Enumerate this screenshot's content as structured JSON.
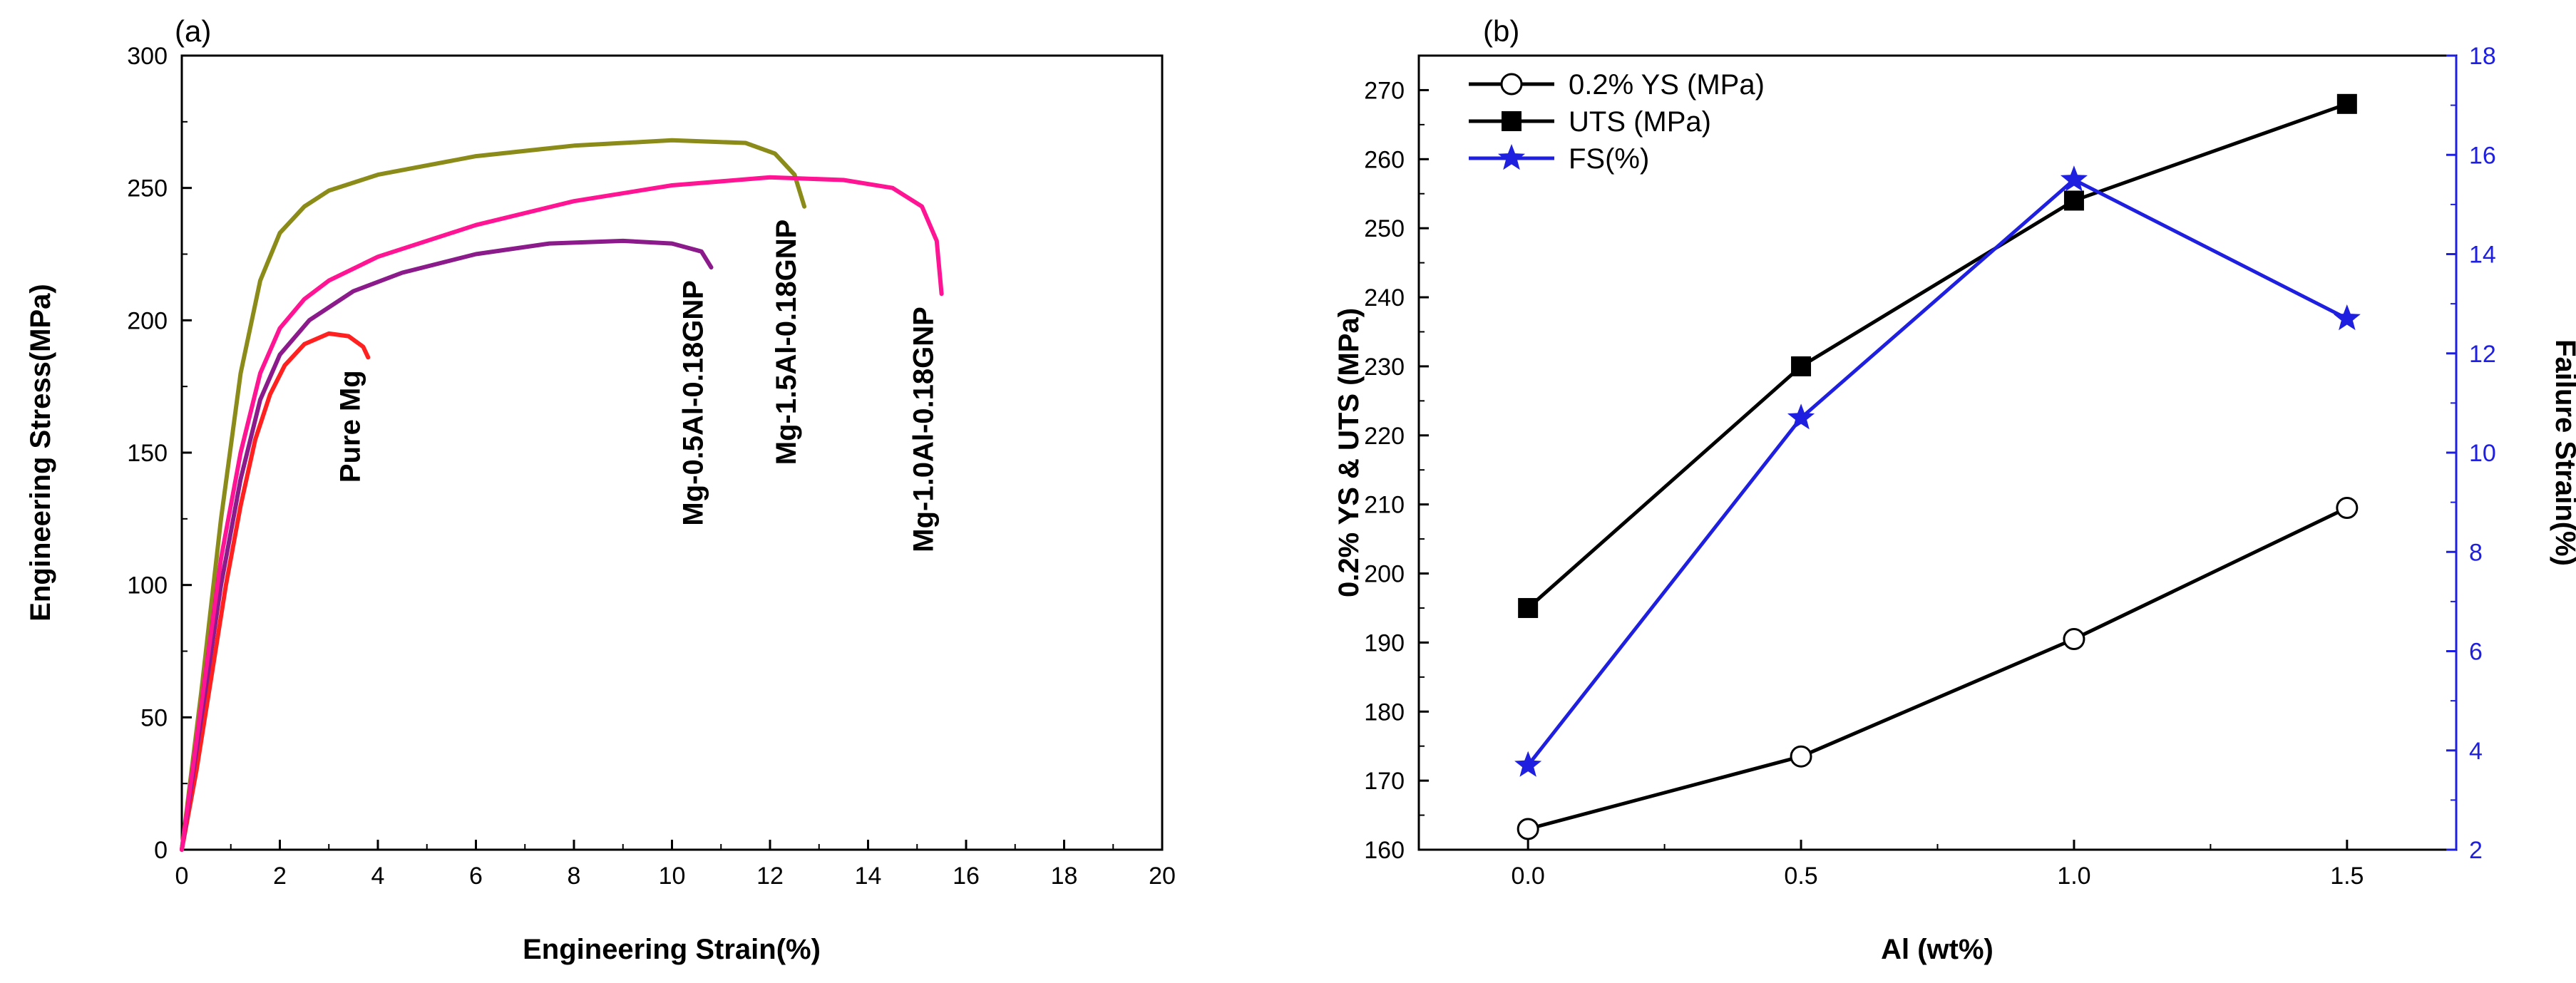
{
  "chart_data": [
    {
      "panel_label": "(a)",
      "type": "line",
      "xlabel": "Engineering Strain(%)",
      "ylabel": "Engineering Stress(MPa)",
      "xlim": [
        0,
        20
      ],
      "ylim": [
        0,
        300
      ],
      "xticks": [
        0,
        2,
        4,
        6,
        8,
        10,
        12,
        14,
        16,
        18,
        20
      ],
      "yticks": [
        0,
        50,
        100,
        150,
        200,
        250,
        300
      ],
      "series": [
        {
          "name": "Pure Mg",
          "label": "Pure Mg",
          "color": "#ff2020",
          "points": [
            [
              0,
              0
            ],
            [
              0.3,
              30
            ],
            [
              0.6,
              65
            ],
            [
              0.9,
              100
            ],
            [
              1.2,
              130
            ],
            [
              1.5,
              155
            ],
            [
              1.8,
              172
            ],
            [
              2.1,
              183
            ],
            [
              2.5,
              191
            ],
            [
              3.0,
              195
            ],
            [
              3.4,
              194
            ],
            [
              3.7,
              190
            ],
            [
              3.8,
              186
            ]
          ]
        },
        {
          "name": "Mg-0.5Al-0.18GNP",
          "label": "Mg-0.5Al-0.18GNP",
          "color": "#8b1a8b",
          "points": [
            [
              0,
              0
            ],
            [
              0.4,
              50
            ],
            [
              0.8,
              100
            ],
            [
              1.2,
              140
            ],
            [
              1.6,
              170
            ],
            [
              2.0,
              187
            ],
            [
              2.6,
              200
            ],
            [
              3.5,
              211
            ],
            [
              4.5,
              218
            ],
            [
              6.0,
              225
            ],
            [
              7.5,
              229
            ],
            [
              9.0,
              230
            ],
            [
              10.0,
              229
            ],
            [
              10.6,
              226
            ],
            [
              10.8,
              220
            ]
          ]
        },
        {
          "name": "Mg-1.5Al-0.18GNP",
          "label": "Mg-1.5Al-0.18GNP",
          "color": "#8b8b1a",
          "points": [
            [
              0,
              0
            ],
            [
              0.4,
              60
            ],
            [
              0.8,
              125
            ],
            [
              1.2,
              180
            ],
            [
              1.6,
              215
            ],
            [
              2.0,
              233
            ],
            [
              2.5,
              243
            ],
            [
              3.0,
              249
            ],
            [
              4.0,
              255
            ],
            [
              6.0,
              262
            ],
            [
              8.0,
              266
            ],
            [
              10.0,
              268
            ],
            [
              11.5,
              267
            ],
            [
              12.1,
              263
            ],
            [
              12.5,
              255
            ],
            [
              12.7,
              243
            ]
          ]
        },
        {
          "name": "Mg-1.0Al-0.18GNP",
          "label": "Mg-1.0Al-0.18GNP",
          "color": "#ff1493",
          "points": [
            [
              0,
              0
            ],
            [
              0.4,
              55
            ],
            [
              0.8,
              110
            ],
            [
              1.2,
              150
            ],
            [
              1.6,
              180
            ],
            [
              2.0,
              197
            ],
            [
              2.5,
              208
            ],
            [
              3.0,
              215
            ],
            [
              4.0,
              224
            ],
            [
              6.0,
              236
            ],
            [
              8.0,
              245
            ],
            [
              10.0,
              251
            ],
            [
              12.0,
              254
            ],
            [
              13.5,
              253
            ],
            [
              14.5,
              250
            ],
            [
              15.1,
              243
            ],
            [
              15.4,
              230
            ],
            [
              15.5,
              210
            ]
          ]
        }
      ]
    },
    {
      "panel_label": "(b)",
      "type": "line",
      "xlabel": "Al (wt%)",
      "ylabel": "0.2% YS & UTS (MPa)",
      "y2label": "Failure Strain(%)",
      "xlim": [
        -0.2,
        1.7
      ],
      "ylim": [
        160,
        275
      ],
      "y2lim": [
        2,
        18
      ],
      "xticks": [
        "0.0",
        "0.5",
        "1.0",
        "1.5"
      ],
      "yticks": [
        160,
        170,
        180,
        190,
        200,
        210,
        220,
        230,
        240,
        250,
        260,
        270
      ],
      "y2ticks": [
        2,
        4,
        6,
        8,
        10,
        12,
        14,
        16,
        18
      ],
      "x": [
        0.0,
        0.5,
        1.0,
        1.5
      ],
      "series": [
        {
          "name": "0.2% YS (MPa)",
          "axis": "left",
          "marker": "open-circle",
          "color": "#000000",
          "values": [
            163,
            173.5,
            190.5,
            209.5
          ]
        },
        {
          "name": "UTS (MPa)",
          "axis": "left",
          "marker": "square",
          "color": "#000000",
          "values": [
            195,
            230,
            254,
            268
          ]
        },
        {
          "name": "FS(%)",
          "axis": "right",
          "marker": "star",
          "color": "#1f1fe0",
          "values": [
            3.7,
            10.7,
            15.5,
            12.7
          ]
        }
      ]
    }
  ]
}
